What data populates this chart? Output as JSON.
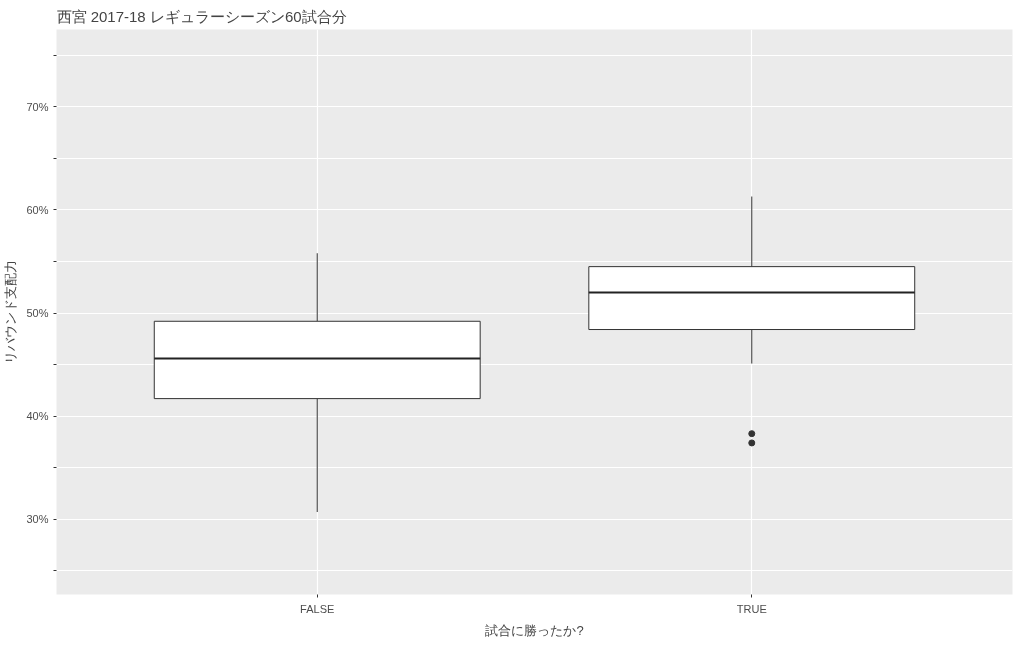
{
  "chart_data": {
    "type": "box",
    "title": "西宮 2017-18 レギュラーシーズン60試合分",
    "xlabel": "試合に勝ったか?",
    "ylabel": "リバウンド支配力",
    "categories": [
      "FALSE",
      "TRUE"
    ],
    "boxes": [
      {
        "low": 30.7,
        "q1": 41.7,
        "median": 45.6,
        "q3": 49.2,
        "high": 55.8
      },
      {
        "low": 45.1,
        "q1": 48.4,
        "median": 52.0,
        "q3": 54.5,
        "high": 61.3,
        "outliers": [
          38.3,
          37.4
        ]
      }
    ],
    "ylim": [
      22.7,
      77.5
    ],
    "yticks": [
      {
        "value": 25,
        "label": null
      },
      {
        "value": 30,
        "label": "30%"
      },
      {
        "value": 35,
        "label": null
      },
      {
        "value": 40,
        "label": "40%"
      },
      {
        "value": 45,
        "label": null
      },
      {
        "value": 50,
        "label": "50%"
      },
      {
        "value": 55,
        "label": null
      },
      {
        "value": 60,
        "label": "60%"
      },
      {
        "value": 65,
        "label": null
      },
      {
        "value": 70,
        "label": "70%"
      },
      {
        "value": 75,
        "label": null
      }
    ],
    "grid": true
  }
}
